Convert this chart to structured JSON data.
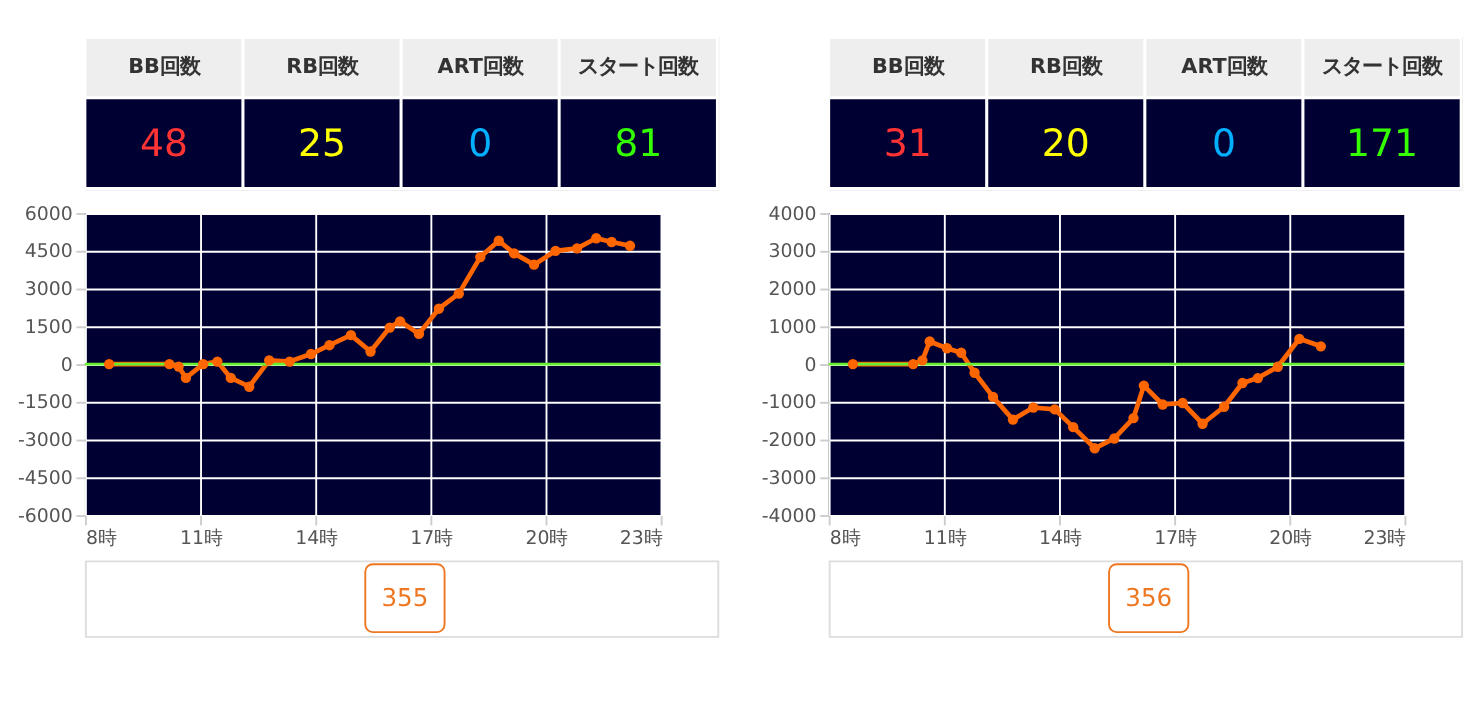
{
  "chart_data": [
    {
      "type": "other",
      "annotations": [
        "BB回数",
        "RB回数",
        "ART回数",
        "スタート回数",
        "48",
        "25",
        "0",
        "81"
      ]
    },
    {
      "type": "line",
      "x": [
        8.63,
        10.2,
        10.44,
        10.63,
        11.08,
        11.45,
        11.8,
        12.28,
        12.8,
        13.33,
        13.89,
        14.37,
        14.93,
        15.44,
        15.94,
        16.21,
        16.7,
        17.22,
        17.74,
        18.3,
        18.78,
        19.18,
        19.7,
        20.26,
        20.82,
        21.32,
        21.72,
        22.2
      ],
      "series": [
        {
          "color": "#ff6600",
          "values": [
            0,
            0,
            -100,
            -550,
            0,
            100,
            -550,
            -900,
            150,
            100,
            400,
            750,
            1150,
            500,
            1450,
            1700,
            1200,
            2200,
            2800,
            4250,
            4900,
            4400,
            3950,
            4500,
            4600,
            5000,
            4850,
            4700
          ]
        }
      ],
      "xlim": [
        8,
        23
      ],
      "xticks": [
        {
          "value": 8,
          "label": "8時"
        },
        {
          "value": 11,
          "label": "11時"
        },
        {
          "value": 14,
          "label": "14時"
        },
        {
          "value": 17,
          "label": "17時"
        },
        {
          "value": 20,
          "label": "20時"
        },
        {
          "value": 23,
          "label": "23時"
        }
      ],
      "ylim": [
        -6000,
        6000
      ],
      "yticks": [
        -6000,
        -4500,
        -3000,
        -1500,
        0,
        1500,
        3000,
        4500,
        6000
      ],
      "grid": true,
      "marker": "circle",
      "line_style": "solid",
      "ref_lines": [
        {
          "axis": "y",
          "value": 0,
          "color": "#66ee33"
        }
      ],
      "annotations": [
        "355"
      ]
    },
    {
      "type": "other",
      "annotations": [
        "BB回数",
        "RB回数",
        "ART回数",
        "スタート回数",
        "31",
        "20",
        "0",
        "171"
      ]
    },
    {
      "type": "line",
      "x": [
        8.63,
        10.2,
        10.44,
        10.63,
        11.08,
        11.45,
        11.8,
        12.28,
        12.8,
        13.33,
        13.89,
        14.37,
        14.93,
        15.44,
        15.94,
        16.21,
        16.7,
        17.22,
        17.74,
        18.3,
        18.78,
        19.18,
        19.7,
        20.26,
        20.82
      ],
      "series": [
        {
          "color": "#ff6600",
          "values": [
            0,
            0,
            100,
            600,
            420,
            300,
            -230,
            -870,
            -1470,
            -1150,
            -1200,
            -1670,
            -2230,
            -1970,
            -1430,
            -570,
            -1070,
            -1030,
            -1580,
            -1130,
            -500,
            -370,
            -70,
            670,
            470
          ]
        }
      ],
      "xlim": [
        8,
        23
      ],
      "xticks": [
        {
          "value": 8,
          "label": "8時"
        },
        {
          "value": 11,
          "label": "11時"
        },
        {
          "value": 14,
          "label": "14時"
        },
        {
          "value": 17,
          "label": "17時"
        },
        {
          "value": 20,
          "label": "20時"
        },
        {
          "value": 23,
          "label": "23時"
        }
      ],
      "ylim": [
        -4000,
        4000
      ],
      "yticks": [
        -4000,
        -3000,
        -2000,
        -1000,
        0,
        1000,
        2000,
        3000,
        4000
      ],
      "grid": true,
      "marker": "circle",
      "line_style": "solid",
      "ref_lines": [
        {
          "axis": "y",
          "value": 0,
          "color": "#66ee33"
        }
      ],
      "annotations": [
        "356"
      ]
    }
  ]
}
